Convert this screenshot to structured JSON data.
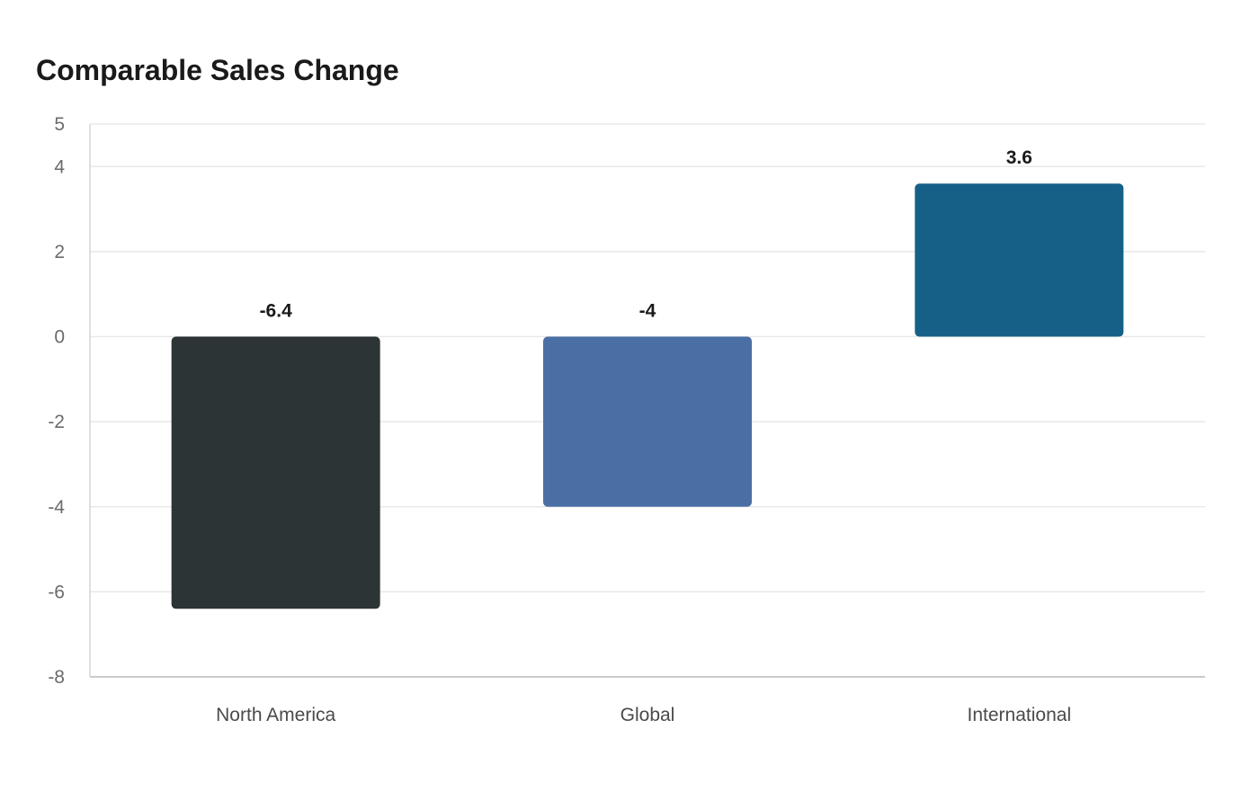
{
  "chart_data": {
    "type": "bar",
    "title": "Comparable Sales Change",
    "xlabel": "",
    "ylabel": "",
    "categories": [
      "North America",
      "Global",
      "International"
    ],
    "values": [
      -6.4,
      -4,
      3.6
    ],
    "data_labels": [
      "-6.4",
      "-4",
      "3.6"
    ],
    "colors": [
      "#2d3436",
      "#4a6fa5",
      "#166088"
    ],
    "ylim": [
      -8,
      5
    ],
    "yticks": [
      -8,
      -6,
      -4,
      -2,
      0,
      2,
      4,
      5
    ],
    "grid": true,
    "legend": "none"
  }
}
